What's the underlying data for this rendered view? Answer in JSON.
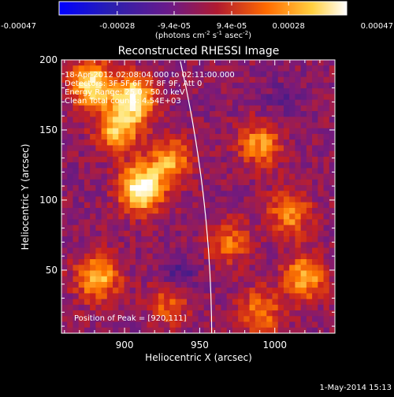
{
  "colorbar": {
    "ticks": [
      "-0.00047",
      "-0.00028",
      "-9.4e-05",
      "9.4e-05",
      "0.00028",
      "0.00047"
    ],
    "min": -0.00047,
    "max": 0.00047,
    "unit_label": "(photons cm",
    "unit_exp1": "-2",
    "unit_mid": " s",
    "unit_exp2": "-1",
    "unit_mid2": " asec",
    "unit_exp3": "-2",
    "unit_close": ")",
    "colors": [
      "#0000ff",
      "#3c1c8c",
      "#7a1a7a",
      "#c8201e",
      "#ff7a00",
      "#ffe060",
      "#ffffff"
    ]
  },
  "chart_data": {
    "type": "heatmap",
    "title": "Reconstructed RHESSI Image",
    "xlabel": "Heliocentric X (arcsec)",
    "ylabel": "Heliocentric Y (arcsec)",
    "xlim": [
      858,
      1040
    ],
    "ylim": [
      5,
      200
    ],
    "xticks": [
      900,
      950,
      1000
    ],
    "yticks": [
      50,
      100,
      150,
      200
    ],
    "limb_color": "#ffffff",
    "hotspots": [
      {
        "x": 911,
        "y": 108,
        "value": 0.00047
      },
      {
        "x": 906,
        "y": 172,
        "value": 0.0004
      },
      {
        "x": 878,
        "y": 183,
        "value": 0.00038
      },
      {
        "x": 895,
        "y": 150,
        "value": 0.00026
      },
      {
        "x": 930,
        "y": 128,
        "value": 0.00022
      },
      {
        "x": 882,
        "y": 45,
        "value": 0.00028
      },
      {
        "x": 990,
        "y": 140,
        "value": 0.0002
      },
      {
        "x": 1020,
        "y": 45,
        "value": 0.00024
      },
      {
        "x": 1010,
        "y": 90,
        "value": 0.00018
      },
      {
        "x": 930,
        "y": 28,
        "value": 0.00015
      },
      {
        "x": 970,
        "y": 70,
        "value": 0.00012
      },
      {
        "x": 990,
        "y": 20,
        "value": 0.00016
      },
      {
        "x": 935,
        "y": 42,
        "value": -0.0003
      },
      {
        "x": 1005,
        "y": 170,
        "value": -0.0002
      }
    ]
  },
  "annotations": {
    "time_range": "18-Apr-2012 02:08:04.000 to 02:11:00.000",
    "detectors": "Detectors: 3F 5F 6F 7F 8F 9F, Att 0",
    "energy": "Energy Range: 25.0 - 50.0 keV",
    "clean": "Clean    Total counts: 4.54E+03",
    "peak": "Position of Peak = [920,111]"
  },
  "footer": {
    "timestamp": "1-May-2014 15:13"
  }
}
